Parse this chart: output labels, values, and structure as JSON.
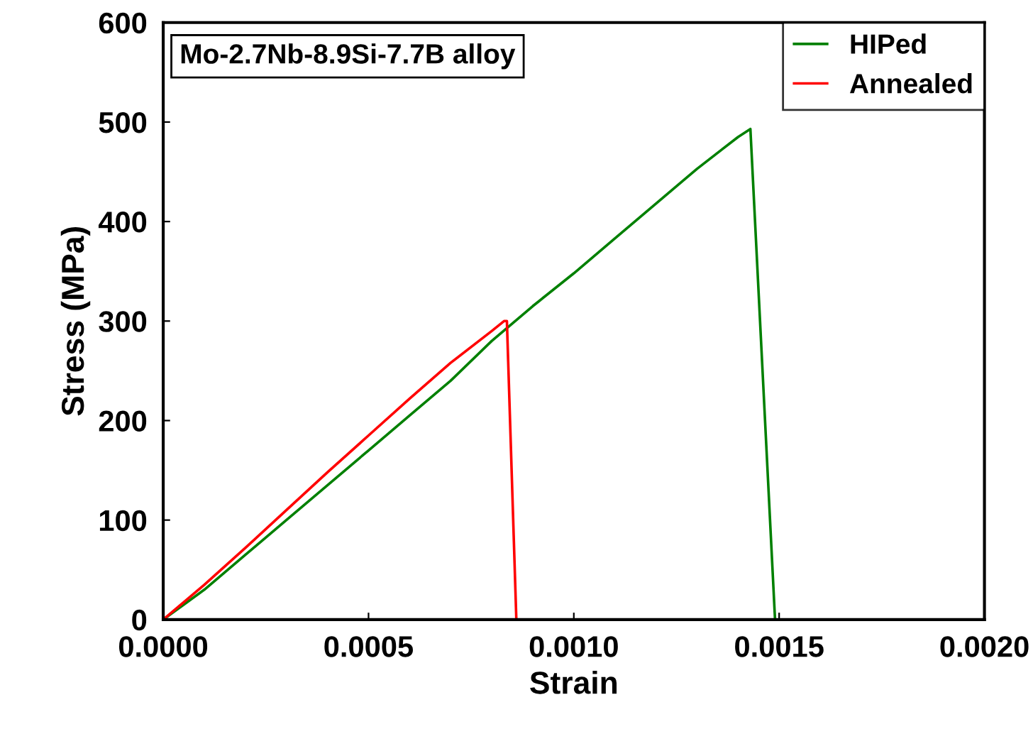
{
  "chart_data": {
    "type": "line",
    "xlabel": "Strain",
    "ylabel": "Stress (MPa)",
    "annotations": [
      "Mo-2.7Nb-8.9Si-7.7B alloy"
    ],
    "xlim": [
      0,
      0.002
    ],
    "ylim": [
      0,
      600
    ],
    "xticks": [
      {
        "value": 0,
        "label": "0.0000"
      },
      {
        "value": 0.0005,
        "label": "0.0005"
      },
      {
        "value": 0.001,
        "label": "0.0010"
      },
      {
        "value": 0.0015,
        "label": "0.0015"
      },
      {
        "value": 0.002,
        "label": "0.0020"
      }
    ],
    "yticks": [
      0,
      100,
      200,
      300,
      400,
      500,
      600
    ],
    "grid": false,
    "legend": "top right",
    "marker": "none",
    "line_style": "solid",
    "series": [
      {
        "name": "HIPed",
        "color": "#008000",
        "x": [
          0,
          0.0001,
          0.0002,
          0.0003,
          0.0004,
          0.0005,
          0.0006,
          0.0007,
          0.0008,
          0.0009,
          0.001,
          0.0011,
          0.0012,
          0.0013,
          0.0014,
          0.00143,
          0.00149
        ],
        "values": [
          0,
          30,
          65,
          100,
          135,
          170,
          205,
          240,
          280,
          315,
          348,
          383,
          418,
          453,
          485,
          493,
          0
        ]
      },
      {
        "name": "Annealed",
        "color": "#ff0000",
        "x": [
          0,
          0.0001,
          0.0002,
          0.0003,
          0.0004,
          0.0005,
          0.0006,
          0.0007,
          0.0008,
          0.00083,
          0.000837,
          0.00086
        ],
        "values": [
          0,
          35,
          72,
          110,
          148,
          185,
          222,
          258,
          290,
          300,
          300,
          0
        ]
      }
    ]
  }
}
